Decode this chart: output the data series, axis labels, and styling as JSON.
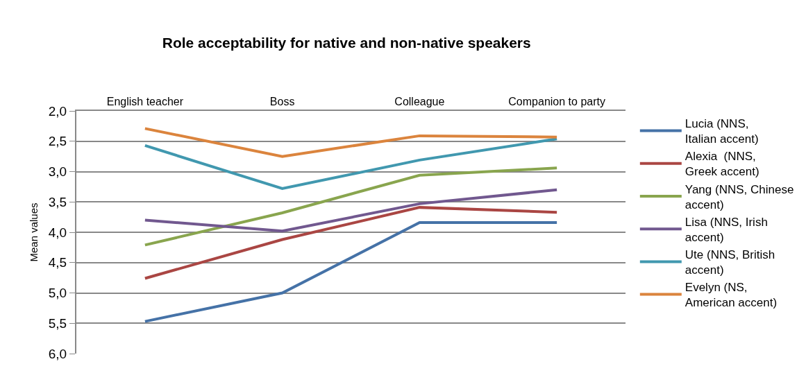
{
  "chart_data": {
    "type": "line",
    "title": "Role acceptability for native and non-native speakers",
    "ylabel": "Mean values",
    "categories": [
      "English teacher",
      "Boss",
      "Colleague",
      "Companion to party"
    ],
    "series": [
      {
        "name": "Lucia (NNS, Italian accent)",
        "color": "#4572a7",
        "values": [
          5.47,
          5.0,
          3.84,
          3.84
        ]
      },
      {
        "name": "Alexia  (NNS, Greek accent)",
        "color": "#aa4643",
        "values": [
          4.76,
          4.12,
          3.59,
          3.67
        ]
      },
      {
        "name": "Yang (NNS, Chinese accent)",
        "color": "#89a54e",
        "values": [
          4.21,
          3.68,
          3.06,
          2.94
        ]
      },
      {
        "name": "Lisa (NNS, Irish accent)",
        "color": "#71588f",
        "values": [
          3.8,
          3.98,
          3.53,
          3.3
        ]
      },
      {
        "name": "Ute (NNS, British accent)",
        "color": "#4198af",
        "values": [
          2.57,
          3.28,
          2.81,
          2.46
        ]
      },
      {
        "name": "Evelyn (NS, American accent)",
        "color": "#db843d",
        "values": [
          2.29,
          2.75,
          2.41,
          2.43
        ]
      }
    ],
    "ylim": [
      6.0,
      2.0
    ],
    "yticks": [
      {
        "value": 2.0,
        "label": "2,0"
      },
      {
        "value": 2.5,
        "label": "2,5"
      },
      {
        "value": 3.0,
        "label": "3,0"
      },
      {
        "value": 3.5,
        "label": "3,5"
      },
      {
        "value": 4.0,
        "label": "4,0"
      },
      {
        "value": 4.5,
        "label": "4,5"
      },
      {
        "value": 5.0,
        "label": "5,0"
      },
      {
        "value": 5.5,
        "label": "5,5"
      },
      {
        "value": 6.0,
        "label": "6,0"
      }
    ],
    "grid": "y",
    "legend": "right",
    "marker": "none",
    "line_style": "solid"
  }
}
